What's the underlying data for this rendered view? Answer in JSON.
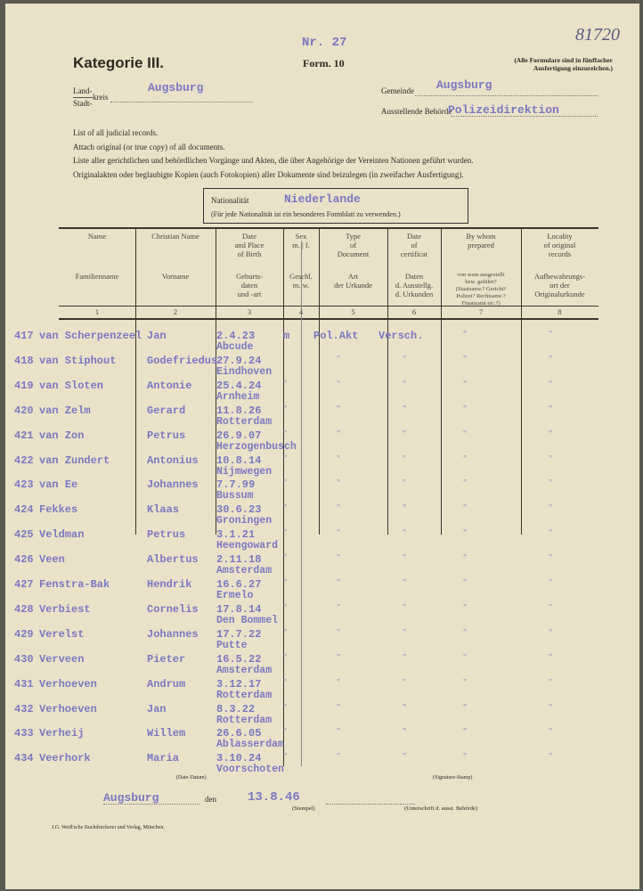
{
  "header": {
    "number": "Nr. 27",
    "category": "Kategorie III.",
    "form": "Form. 10",
    "note_line1": "(Alle Formulare sind in fünffacher",
    "note_line2": "Ausfertigung einzureichen.)",
    "file_number": "81720"
  },
  "fields": {
    "land_label": "Land-",
    "stadt_label": "Stadt-",
    "kreis_label": "kreis",
    "kreis_value": "Augsburg",
    "gemeinde_label": "Gemeinde",
    "gemeinde_value": "Augsburg",
    "behoerde_label": "Ausstellende Behörde",
    "behoerde_value": "Polizeidirektion"
  },
  "instructions": [
    "List of all judicial records.",
    "Attach original (or true copy) of all documents.",
    "Liste aller gerichtlichen und behördlichen Vorgänge und Akten, die über Angehörige der Vereinten Nationen geführt wurden.",
    "Originalakten oder beglaubigte Kopien (auch Fotokopien) aller Dokumente sind beizulegen (in zweifacher Ausfertigung)."
  ],
  "nationality": {
    "label": "Nationalität",
    "value": "Niederlande",
    "note": "(Für jede Nationalität ist ein besonderes Formblatt zu verwenden.)"
  },
  "columns": [
    {
      "en": "Name",
      "de": "Familienname",
      "num": "1"
    },
    {
      "en": "Christian Name",
      "de": "Vorname",
      "num": "2"
    },
    {
      "en": "Date\nand Place\nof Birth",
      "de": "Geburts-\ndaten\nund -art",
      "num": "3"
    },
    {
      "en": "Sex\nm. | f.",
      "de": "Geschl.\nm.   w.",
      "num": "4"
    },
    {
      "en": "Type\nof\nDocument",
      "de": "Art\nder Urkunde",
      "num": "5"
    },
    {
      "en": "Date\nof\ncertificat",
      "de": "Daten\nd. Ausstellg.\nd. Urkunden",
      "num": "6"
    },
    {
      "en": "By whom\nprepared",
      "de": "von wem ausgestellt\nbzw. geführt?\n(Staatsanw.? Gericht?\nPolizei? Rechtsanw.?\nFinanzamt etc.?)",
      "num": "7"
    },
    {
      "en": "Locality\nof original\nrecords",
      "de": "Aufbewahrungs-\nort der\nOriginalurkunde",
      "num": "8"
    }
  ],
  "rows": [
    {
      "no": "417",
      "surname": "van Scherpenzeel",
      "first": "Jan",
      "date": "2.4.23",
      "place": "Abcude",
      "sex": "m",
      "type": "Pol.Akt",
      "cert": "Versch.",
      "by": "\"",
      "loc": "\""
    },
    {
      "no": "418",
      "surname": "van Stiphout",
      "first": "Godefriedus",
      "date": "27.9.24",
      "place": "Eindhoven",
      "sex": "",
      "type": "\"",
      "cert": "\"",
      "by": "\"",
      "loc": "\""
    },
    {
      "no": "419",
      "surname": "van Sloten",
      "first": "Antonie",
      "date": "25.4.24",
      "place": "Arnheim",
      "sex": "\"",
      "type": "\"",
      "cert": "\"",
      "by": "\"",
      "loc": "\""
    },
    {
      "no": "420",
      "surname": "van Zelm",
      "first": "Gerard",
      "date": "11.8.26",
      "place": "Rotterdam",
      "sex": "\"",
      "type": "\"",
      "cert": "\"",
      "by": "\"",
      "loc": "\""
    },
    {
      "no": "421",
      "surname": "van Zon",
      "first": "Petrus",
      "date": "26.9.07",
      "place": "Herzogenbusch",
      "sex": "\"",
      "type": "\"",
      "cert": "\"",
      "by": "\"",
      "loc": "\""
    },
    {
      "no": "422",
      "surname": "van Zundert",
      "first": "Antonius",
      "date": "10.8.14",
      "place": "Nijmwegen",
      "sex": "\"",
      "type": "\"",
      "cert": "\"",
      "by": "\"",
      "loc": "\""
    },
    {
      "no": "423",
      "surname": "van Ee",
      "first": "Johannes",
      "date": "7.7.99",
      "place": "Bussum",
      "sex": "\"",
      "type": "\"",
      "cert": "\"",
      "by": "\"",
      "loc": "\""
    },
    {
      "no": "424",
      "surname": "Fekkes",
      "first": "Klaas",
      "date": "30.6.23",
      "place": "Groningen",
      "sex": "\"",
      "type": "\"",
      "cert": "\"",
      "by": "\"",
      "loc": "\""
    },
    {
      "no": "425",
      "surname": "Veldman",
      "first": "Petrus",
      "date": "3.1.21",
      "place": "Heengoward",
      "sex": "\"",
      "type": "\"",
      "cert": "\"",
      "by": "\"",
      "loc": "\""
    },
    {
      "no": "426",
      "surname": "Veen",
      "first": "Albertus",
      "date": "2.11.18",
      "place": "Amsterdam",
      "sex": "\"",
      "type": "\"",
      "cert": "\"",
      "by": "\"",
      "loc": "\""
    },
    {
      "no": "427",
      "surname": "Fenstra-Bak",
      "first": "Hendrik",
      "date": "16.6.27",
      "place": "Ermelo",
      "sex": "\"",
      "type": "\"",
      "cert": "\"",
      "by": "\"",
      "loc": "\""
    },
    {
      "no": "428",
      "surname": "Verbiest",
      "first": "Cornelis",
      "date": "17.8.14",
      "place": "Den Bommel",
      "sex": "\"",
      "type": "\"",
      "cert": "\"",
      "by": "\"",
      "loc": "\""
    },
    {
      "no": "429",
      "surname": "Verelst",
      "first": "Johannes",
      "date": "17.7.22",
      "place": "Putte",
      "sex": "\"",
      "type": "\"",
      "cert": "\"",
      "by": "\"",
      "loc": "\""
    },
    {
      "no": "430",
      "surname": "Verveen",
      "first": "Pieter",
      "date": "16.5.22",
      "place": "Amsterdam",
      "sex": "\"",
      "type": "\"",
      "cert": "\"",
      "by": "\"",
      "loc": "\""
    },
    {
      "no": "431",
      "surname": "Verhoeven",
      "first": "Andrum",
      "date": "3.12.17",
      "place": "Rotterdam",
      "sex": "\"",
      "type": "\"",
      "cert": "\"",
      "by": "\"",
      "loc": "\""
    },
    {
      "no": "432",
      "surname": "Verhoeven",
      "first": "Jan",
      "date": "8.3.22",
      "place": "Rotterdam",
      "sex": "\"",
      "type": "\"",
      "cert": "\"",
      "by": "\"",
      "loc": "\""
    },
    {
      "no": "433",
      "surname": "Verheij",
      "first": "Willem",
      "date": "26.6.05",
      "place": "Ablasserdam",
      "sex": "\"",
      "type": "\"",
      "cert": "\"",
      "by": "\"",
      "loc": "\""
    },
    {
      "no": "434",
      "surname": "Veerhork",
      "first": "Maria",
      "date": "3.10.24",
      "place": "Voorschoten",
      "sex": "\"",
      "type": "\"",
      "cert": "\"",
      "by": "\"",
      "loc": "\""
    }
  ],
  "footer": {
    "date_caption": "(Date-Datum)",
    "signature_caption": "(Signature-Stamp)",
    "place": "Augsburg",
    "den": "den",
    "date": "13.8.46",
    "stamp_caption": "(Stempel)",
    "sign_caption": "(Unterschrift d. ausst. Behörde)",
    "printer": "J.G. Weiß'sche Buchdruckerei und Verlag, München."
  },
  "colors": {
    "paper": "#e9e2c9",
    "typewriter_ink": "#7c78c0"
  }
}
